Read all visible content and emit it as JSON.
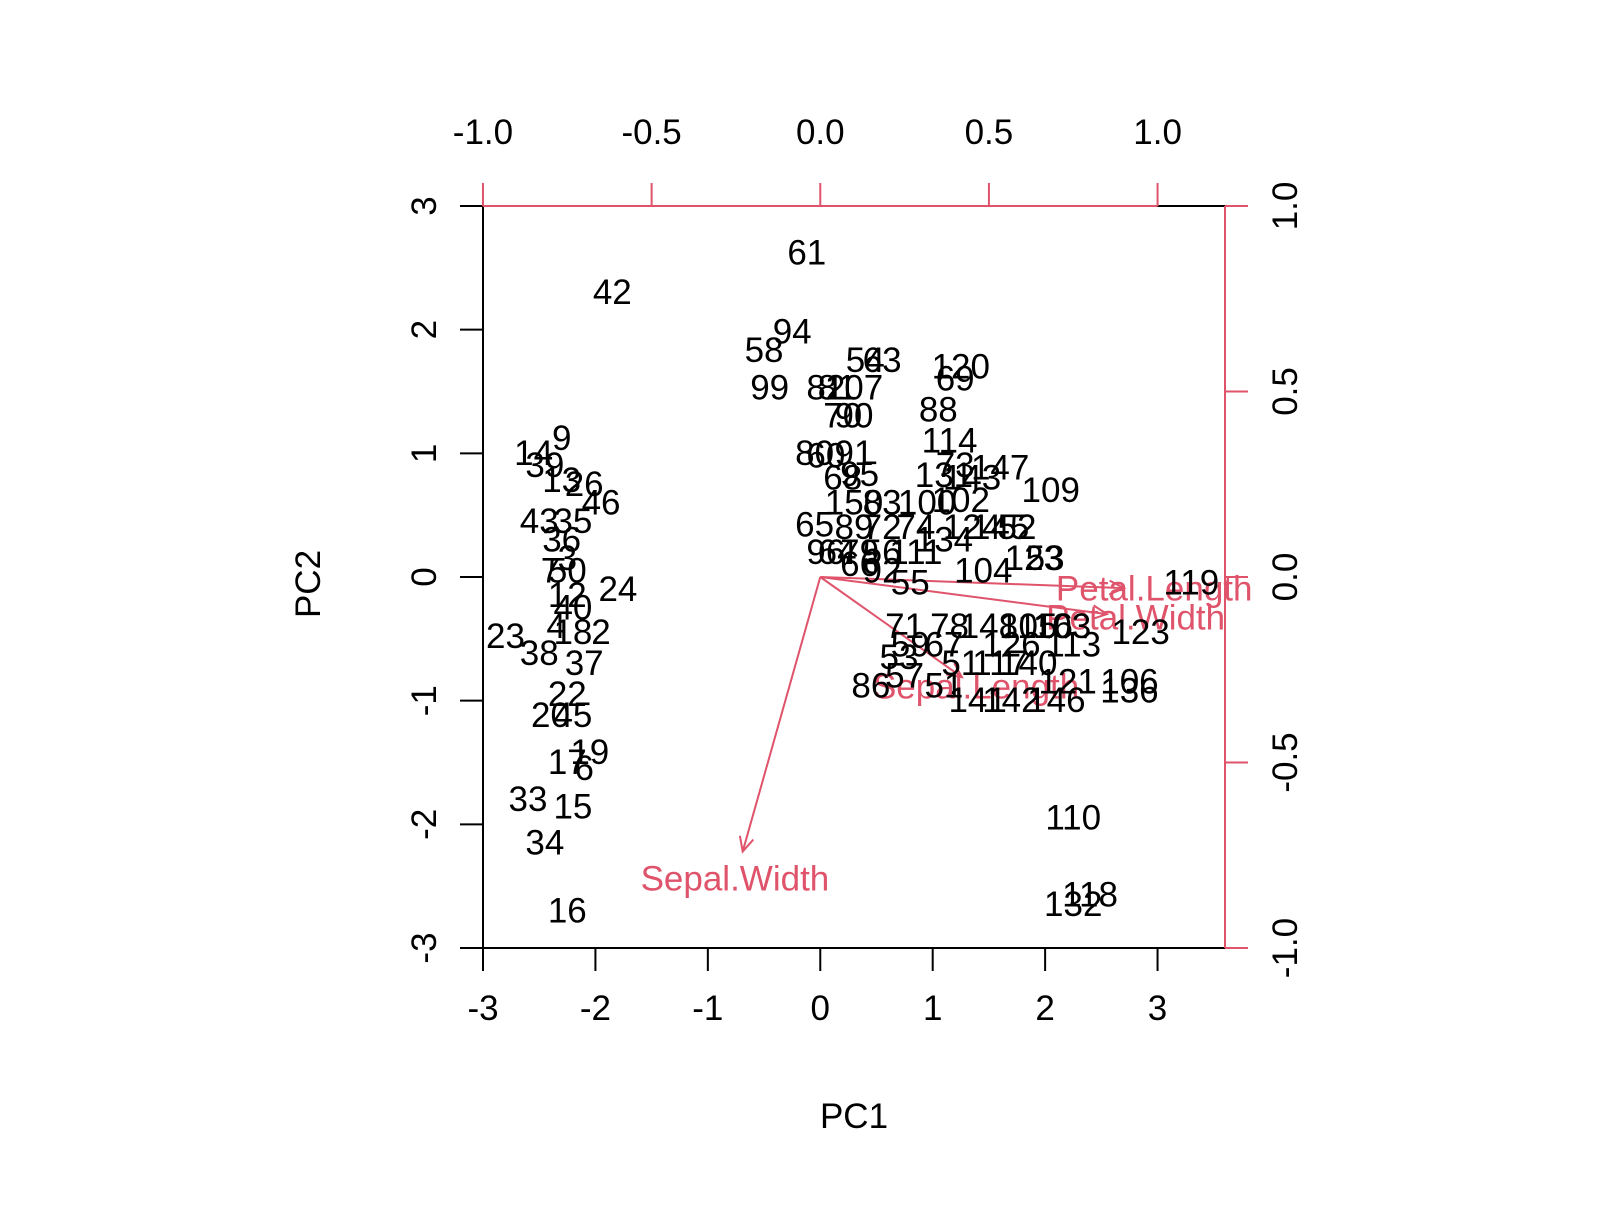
{
  "colors": {
    "obs": "#000000",
    "load": "#DF536B",
    "frame": "#000000"
  },
  "chart_data": {
    "type": "scatter",
    "subtype": "biplot",
    "title": "",
    "xlabel": "PC1",
    "ylabel": "PC2",
    "xlim": [
      -3,
      3.6
    ],
    "ylim": [
      -3,
      3
    ],
    "xticks": [
      -3,
      -2,
      -1,
      0,
      1,
      2,
      3
    ],
    "yticks": [
      -3,
      -2,
      -1,
      0,
      1,
      2,
      3
    ],
    "xtick_labels": [
      "-3",
      "-2",
      "-1",
      "0",
      "1",
      "2",
      "3"
    ],
    "ytick_labels": [
      "-3",
      "-2",
      "-1",
      "0",
      "1",
      "2",
      "3"
    ],
    "top_axis": {
      "ticks": [
        -1.0,
        -0.5,
        0.0,
        0.5,
        1.0
      ],
      "labels": [
        "-1.0",
        "-0.5",
        "0.0",
        "0.5",
        "1.0"
      ],
      "scale": 0.3333
    },
    "right_axis": {
      "ticks": [
        -1.0,
        -0.5,
        0.0,
        0.5,
        1.0
      ],
      "labels": [
        "-1.0",
        "-0.5",
        "0.0",
        "0.5",
        "1.0"
      ],
      "scale": 0.3333
    },
    "grid": false,
    "observations": [
      {
        "label": "61",
        "x": -0.12,
        "y": 2.62
      },
      {
        "label": "42",
        "x": -1.85,
        "y": 2.3
      },
      {
        "label": "94",
        "x": -0.25,
        "y": 1.98
      },
      {
        "label": "58",
        "x": -0.5,
        "y": 1.83
      },
      {
        "label": "99",
        "x": -0.45,
        "y": 1.53
      },
      {
        "label": "82",
        "x": 0.05,
        "y": 1.53
      },
      {
        "label": "81",
        "x": 0.15,
        "y": 1.53
      },
      {
        "label": "107",
        "x": 0.3,
        "y": 1.53
      },
      {
        "label": "54",
        "x": 0.4,
        "y": 1.75
      },
      {
        "label": "63",
        "x": 0.55,
        "y": 1.75
      },
      {
        "label": "120",
        "x": 1.25,
        "y": 1.7
      },
      {
        "label": "69",
        "x": 1.2,
        "y": 1.6
      },
      {
        "label": "88",
        "x": 1.05,
        "y": 1.35
      },
      {
        "label": "70",
        "x": 0.2,
        "y": 1.3
      },
      {
        "label": "90",
        "x": 0.3,
        "y": 1.3
      },
      {
        "label": "114",
        "x": 1.15,
        "y": 1.1
      },
      {
        "label": "80",
        "x": -0.05,
        "y": 1.0
      },
      {
        "label": "60",
        "x": 0.05,
        "y": 0.98
      },
      {
        "label": "91",
        "x": 0.3,
        "y": 1.0
      },
      {
        "label": "73",
        "x": 1.2,
        "y": 0.9
      },
      {
        "label": "147",
        "x": 1.6,
        "y": 0.88
      },
      {
        "label": "95",
        "x": 0.35,
        "y": 0.83
      },
      {
        "label": "131",
        "x": 1.1,
        "y": 0.82
      },
      {
        "label": "143",
        "x": 1.35,
        "y": 0.8
      },
      {
        "label": "109",
        "x": 2.05,
        "y": 0.7
      },
      {
        "label": "68",
        "x": 0.2,
        "y": 0.8
      },
      {
        "label": "150",
        "x": 0.3,
        "y": 0.6
      },
      {
        "label": "83",
        "x": 0.55,
        "y": 0.6
      },
      {
        "label": "100",
        "x": 0.95,
        "y": 0.6
      },
      {
        "label": "102",
        "x": 1.25,
        "y": 0.62
      },
      {
        "label": "65",
        "x": -0.05,
        "y": 0.42
      },
      {
        "label": "89",
        "x": 0.3,
        "y": 0.4
      },
      {
        "label": "72",
        "x": 0.55,
        "y": 0.4
      },
      {
        "label": "74",
        "x": 0.85,
        "y": 0.4
      },
      {
        "label": "124",
        "x": 1.35,
        "y": 0.4
      },
      {
        "label": "145",
        "x": 1.6,
        "y": 0.4
      },
      {
        "label": "52",
        "x": 1.75,
        "y": 0.4
      },
      {
        "label": "134",
        "x": 1.1,
        "y": 0.3
      },
      {
        "label": "123",
        "x": 1.9,
        "y": 0.15
      },
      {
        "label": "53",
        "x": 2.0,
        "y": 0.15
      },
      {
        "label": "96",
        "x": 0.05,
        "y": 0.2
      },
      {
        "label": "64",
        "x": 0.15,
        "y": 0.2
      },
      {
        "label": "79",
        "x": 0.35,
        "y": 0.2
      },
      {
        "label": "56",
        "x": 0.55,
        "y": 0.2
      },
      {
        "label": "111",
        "x": 0.85,
        "y": 0.2
      },
      {
        "label": "104",
        "x": 1.45,
        "y": 0.05
      },
      {
        "label": "66",
        "x": 0.35,
        "y": 0.1
      },
      {
        "label": "92",
        "x": 0.55,
        "y": 0.05
      },
      {
        "label": "55",
        "x": 0.8,
        "y": -0.05
      },
      {
        "label": "119",
        "x": 3.3,
        "y": -0.05
      },
      {
        "label": "71",
        "x": 0.75,
        "y": -0.4
      },
      {
        "label": "78",
        "x": 1.15,
        "y": -0.4
      },
      {
        "label": "148",
        "x": 1.5,
        "y": -0.4
      },
      {
        "label": "105",
        "x": 1.85,
        "y": -0.4
      },
      {
        "label": "116",
        "x": 2.0,
        "y": -0.4
      },
      {
        "label": "103",
        "x": 2.15,
        "y": -0.4
      },
      {
        "label": "123",
        "x": 2.85,
        "y": -0.45
      },
      {
        "label": "59",
        "x": 0.8,
        "y": -0.55
      },
      {
        "label": "67",
        "x": 1.1,
        "y": -0.55
      },
      {
        "label": "126",
        "x": 1.7,
        "y": -0.55
      },
      {
        "label": "113",
        "x": 2.25,
        "y": -0.55
      },
      {
        "label": "53",
        "x": 0.7,
        "y": -0.65
      },
      {
        "label": "51",
        "x": 1.25,
        "y": -0.7
      },
      {
        "label": "117",
        "x": 1.6,
        "y": -0.7
      },
      {
        "label": "140",
        "x": 1.85,
        "y": -0.7
      },
      {
        "label": "57",
        "x": 0.75,
        "y": -0.8
      },
      {
        "label": "106",
        "x": 2.75,
        "y": -0.85
      },
      {
        "label": "86",
        "x": 0.45,
        "y": -0.88
      },
      {
        "label": "51",
        "x": 1.1,
        "y": -0.88
      },
      {
        "label": "121",
        "x": 2.2,
        "y": -0.85
      },
      {
        "label": "136",
        "x": 2.75,
        "y": -0.92
      },
      {
        "label": "141",
        "x": 1.4,
        "y": -1.0
      },
      {
        "label": "142",
        "x": 1.7,
        "y": -1.0
      },
      {
        "label": "146",
        "x": 2.1,
        "y": -1.0
      },
      {
        "label": "110",
        "x": 2.25,
        "y": -1.95
      },
      {
        "label": "118",
        "x": 2.4,
        "y": -2.57
      },
      {
        "label": "132",
        "x": 2.25,
        "y": -2.65
      },
      {
        "label": "9",
        "x": -2.3,
        "y": 1.12
      },
      {
        "label": "14",
        "x": -2.55,
        "y": 1.0
      },
      {
        "label": "39",
        "x": -2.45,
        "y": 0.9
      },
      {
        "label": "13",
        "x": -2.3,
        "y": 0.78
      },
      {
        "label": "26",
        "x": -2.1,
        "y": 0.75
      },
      {
        "label": "46",
        "x": -1.95,
        "y": 0.6
      },
      {
        "label": "43",
        "x": -2.5,
        "y": 0.45
      },
      {
        "label": "35",
        "x": -2.2,
        "y": 0.45
      },
      {
        "label": "36",
        "x": -2.3,
        "y": 0.3
      },
      {
        "label": "3",
        "x": -2.25,
        "y": 0.15
      },
      {
        "label": "7",
        "x": -2.4,
        "y": 0.05
      },
      {
        "label": "50",
        "x": -2.25,
        "y": 0.05
      },
      {
        "label": "24",
        "x": -1.8,
        "y": -0.1
      },
      {
        "label": "12",
        "x": -2.25,
        "y": -0.15
      },
      {
        "label": "40",
        "x": -2.2,
        "y": -0.25
      },
      {
        "label": "23",
        "x": -2.8,
        "y": -0.48
      },
      {
        "label": "4",
        "x": -2.35,
        "y": -0.4
      },
      {
        "label": "18",
        "x": -2.2,
        "y": -0.45
      },
      {
        "label": "2",
        "x": -1.95,
        "y": -0.45
      },
      {
        "label": "38",
        "x": -2.5,
        "y": -0.62
      },
      {
        "label": "37",
        "x": -2.1,
        "y": -0.7
      },
      {
        "label": "22",
        "x": -2.25,
        "y": -0.95
      },
      {
        "label": "20",
        "x": -2.4,
        "y": -1.12
      },
      {
        "label": "45",
        "x": -2.2,
        "y": -1.12
      },
      {
        "label": "19",
        "x": -2.05,
        "y": -1.42
      },
      {
        "label": "17",
        "x": -2.25,
        "y": -1.5
      },
      {
        "label": "6",
        "x": -2.1,
        "y": -1.55
      },
      {
        "label": "33",
        "x": -2.6,
        "y": -1.8
      },
      {
        "label": "15",
        "x": -2.2,
        "y": -1.86
      },
      {
        "label": "34",
        "x": -2.45,
        "y": -2.15
      },
      {
        "label": "16",
        "x": -2.25,
        "y": -2.7
      }
    ],
    "loadings": [
      {
        "name": "Petal.Length",
        "x": 0.9,
        "y": -0.03
      },
      {
        "name": "Petal.Width",
        "x": 0.85,
        "y": -0.1
      },
      {
        "name": "Sepal.Length",
        "x": 0.42,
        "y": -0.27
      },
      {
        "name": "Sepal.Width",
        "x": -0.23,
        "y": -0.74
      }
    ]
  }
}
